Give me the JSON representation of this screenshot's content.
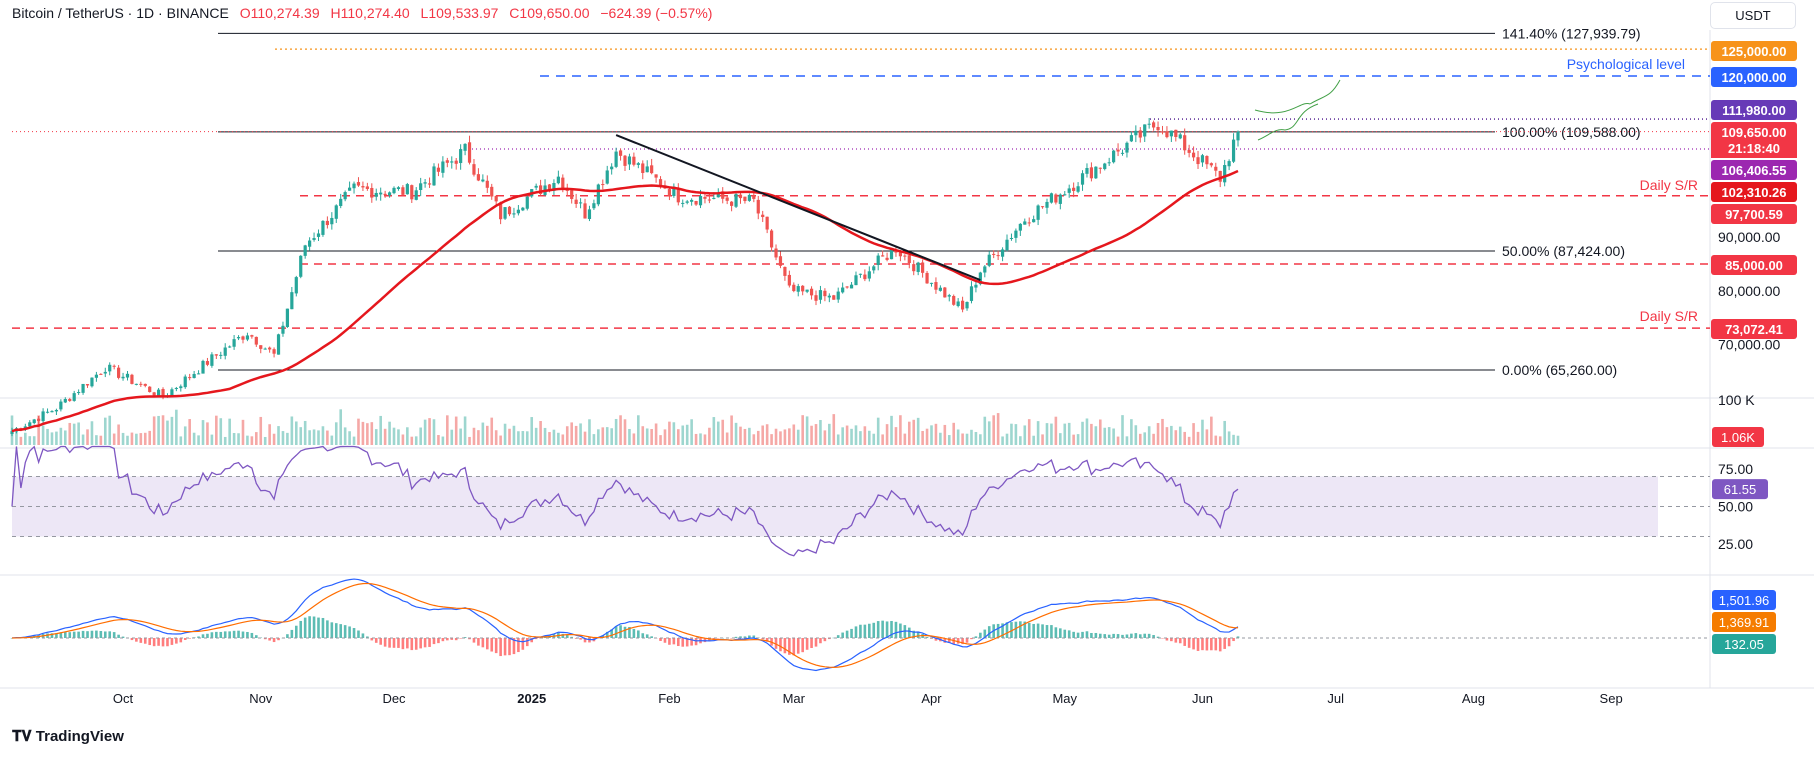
{
  "header": {
    "symbol": "Bitcoin / TetherUS · 1D · BINANCE",
    "open": "O110,274.39",
    "high": "H110,274.40",
    "low": "L109,533.97",
    "close": "C109,650.00",
    "change": "−624.39 (−0.57%)"
  },
  "currency": "USDT",
  "brand": "TradingView",
  "colors": {
    "up": "#26a69a",
    "down": "#ef5350",
    "ma": "#e5171d",
    "rsi": "#7e57c2",
    "macd": "#2962ff",
    "signal": "#ff6d00"
  },
  "chart_data": [
    {
      "type": "candlestick",
      "title": "",
      "x_ticks": [
        "Oct",
        "Nov",
        "Dec",
        "2025",
        "Feb",
        "Mar",
        "Apr",
        "May",
        "Jun",
        "Jul",
        "Aug",
        "Sep"
      ],
      "y_ticks": [
        "90,000.00",
        "80,000.00",
        "70,000.00"
      ],
      "ylim": [
        60000,
        137000
      ],
      "last_price": 109650,
      "close_anchors": [
        {
          "date": "2024-09-06",
          "value": 53900
        },
        {
          "date": "2024-09-16",
          "value": 58200
        },
        {
          "date": "2024-09-27",
          "value": 65800
        },
        {
          "date": "2024-10-10",
          "value": 60300
        },
        {
          "date": "2024-10-21",
          "value": 67400
        },
        {
          "date": "2024-10-29",
          "value": 72300
        },
        {
          "date": "2024-11-04",
          "value": 68000
        },
        {
          "date": "2024-11-11",
          "value": 88600
        },
        {
          "date": "2024-11-22",
          "value": 98900
        },
        {
          "date": "2024-12-05",
          "value": 98500
        },
        {
          "date": "2024-12-17",
          "value": 106100
        },
        {
          "date": "2024-12-25",
          "value": 94100
        },
        {
          "date": "2025-01-07",
          "value": 101300
        },
        {
          "date": "2025-01-13",
          "value": 94500
        },
        {
          "date": "2025-01-20",
          "value": 106000
        },
        {
          "date": "2025-02-03",
          "value": 97700
        },
        {
          "date": "2025-02-20",
          "value": 96600
        },
        {
          "date": "2025-02-28",
          "value": 80000
        },
        {
          "date": "2025-03-10",
          "value": 78600
        },
        {
          "date": "2025-03-24",
          "value": 88000
        },
        {
          "date": "2025-04-08",
          "value": 76300
        },
        {
          "date": "2025-04-12",
          "value": 83800
        },
        {
          "date": "2025-04-22",
          "value": 93400
        },
        {
          "date": "2025-05-08",
          "value": 103000
        },
        {
          "date": "2025-05-22",
          "value": 111300
        },
        {
          "date": "2025-06-05",
          "value": 101000
        },
        {
          "date": "2025-06-09",
          "value": 109650
        }
      ],
      "moving_average": {
        "period": 50,
        "last": 102310.26
      },
      "levels": [
        {
          "value": 127939.79,
          "label": "141.40% (127,939.79)",
          "kind": "fib"
        },
        {
          "value": 125000.0,
          "label": "125,000.00",
          "kind": "target"
        },
        {
          "value": 120000.0,
          "label": "120,000.00",
          "kind": "target",
          "note": "Psychological level"
        },
        {
          "value": 111980.0,
          "label": "111,980.00",
          "kind": "resistance"
        },
        {
          "value": 109588.0,
          "label": "100.00% (109,588.00)",
          "kind": "fib"
        },
        {
          "value": 106406.55,
          "label": "106,406.55",
          "kind": "support"
        },
        {
          "value": 97700.59,
          "label": "97,700.59",
          "kind": "sr",
          "note": "Daily S/R"
        },
        {
          "value": 87424.0,
          "label": "50.00% (87,424.00)",
          "kind": "fib"
        },
        {
          "value": 85000.0,
          "label": "85,000.00",
          "kind": "sr"
        },
        {
          "value": 73072.41,
          "label": "73,072.41",
          "kind": "sr",
          "note": "Daily S/R"
        },
        {
          "value": 65260.0,
          "label": "0.00% (65,260.00)",
          "kind": "fib"
        }
      ],
      "price_tags": [
        {
          "value": "125,000.00",
          "color": "#f7931a"
        },
        {
          "value": "120,000.00",
          "color": "#2962ff"
        },
        {
          "value": "111,980.00",
          "color": "#673ab7"
        },
        {
          "value": "109,650.00",
          "color": "#f23645"
        },
        {
          "value": "21:18:40",
          "color": "#f23645"
        },
        {
          "value": "106,406.55",
          "color": "#9c27b0"
        },
        {
          "value": "102,310.26",
          "color": "#e5171d"
        },
        {
          "value": "97,700.59",
          "color": "#f23645"
        },
        {
          "value": "85,000.00",
          "color": "#f23645"
        },
        {
          "value": "73,072.41",
          "color": "#f23645"
        }
      ],
      "trendline": {
        "from": {
          "date": "2025-01-20",
          "value": 109000
        },
        "to": {
          "date": "2025-04-12",
          "value": 82000
        }
      },
      "annotations": {
        "psychological": "Psychological level",
        "daily_sr": "Daily S/R"
      }
    },
    {
      "type": "bar",
      "title": "",
      "y_ticks": [
        "100 K"
      ],
      "last_label": "1.06K"
    },
    {
      "type": "line",
      "title": "",
      "y_ticks": [
        "75.00",
        "50.00",
        "25.00"
      ],
      "bands": [
        70,
        30
      ],
      "last": 61.55,
      "last_label": "61.55"
    },
    {
      "type": "line",
      "title": "",
      "series": [
        {
          "last": 1501.96,
          "label": "1,501.96"
        },
        {
          "last": 1369.91,
          "label": "1,369.91"
        },
        {
          "last": 132.05,
          "label": "132.05"
        }
      ]
    }
  ]
}
